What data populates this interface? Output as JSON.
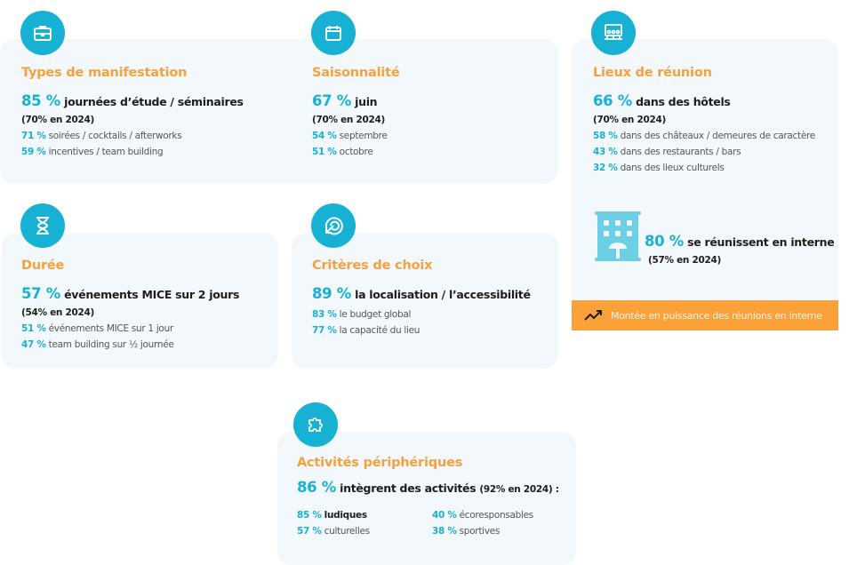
{
  "colors": {
    "accent": "#17b1d4",
    "title": "#f7a13c",
    "card": "#f3f8fc",
    "banner": "#fba13a"
  },
  "types": {
    "icon": "briefcase-icon",
    "title": "Types de manifestation",
    "main_pct": "85 %",
    "main_text": "journées d’étude / séminaires",
    "prev": "(70% en 2024)",
    "items": [
      {
        "pct": "71 %",
        "text": "soirées / cocktails / afterworks"
      },
      {
        "pct": "59 %",
        "text": "incentives / team building"
      }
    ]
  },
  "saison": {
    "icon": "calendar-icon",
    "title": "Saisonnalité",
    "main_pct": "67 %",
    "main_text": "juin",
    "prev": "(70% en 2024)",
    "items": [
      {
        "pct": "54 %",
        "text": "septembre"
      },
      {
        "pct": "51 %",
        "text": "octobre"
      }
    ]
  },
  "lieux": {
    "icon": "meeting-room-icon",
    "title": "Lieux de réunion",
    "main_pct": "66 %",
    "main_text": "dans des hôtels",
    "prev": "(70% en 2024)",
    "items": [
      {
        "pct": "58 %",
        "text": "dans des châteaux / demeures de caractère"
      },
      {
        "pct": "43 %",
        "text": "dans des restaurants / bars"
      },
      {
        "pct": "32 %",
        "text": "dans des lieux culturels"
      }
    ],
    "interne": {
      "icon": "building-icon",
      "pct": "80 %",
      "text": "se réunissent en interne",
      "prev": "(57% en 2024)"
    },
    "banner": {
      "icon": "trending-up-icon",
      "text": "Montée en puissance des réunions en interne"
    }
  },
  "duree": {
    "icon": "hourglass-icon",
    "title": "Durée",
    "main_pct": "57 %",
    "main_text": "événements MICE sur 2 jours",
    "prev": "(54% en 2024)",
    "items": [
      {
        "pct": "51 %",
        "text": "événements MICE sur 1 jour"
      },
      {
        "pct": "47 %",
        "text": "team building sur ½ journée"
      }
    ]
  },
  "criteres": {
    "icon": "target-icon",
    "title": "Critères de choix",
    "main_pct": "89 %",
    "main_text": "la localisation / l’accessibilité",
    "items": [
      {
        "pct": "83 %",
        "text": "le budget global"
      },
      {
        "pct": "77 %",
        "text": "la capacité du lieu"
      }
    ]
  },
  "activites": {
    "icon": "puzzle-icon",
    "title": "Activités périphériques",
    "main_pct": "86 %",
    "main_text": "intègrent des activités",
    "prev": "(92% en 2024) :",
    "items": [
      {
        "pct": "85 %",
        "text": "ludiques"
      },
      {
        "pct": "40 %",
        "text": "écoresponsables"
      },
      {
        "pct": "57 %",
        "text": "culturelles"
      },
      {
        "pct": "38 %",
        "text": "sportives"
      }
    ]
  }
}
